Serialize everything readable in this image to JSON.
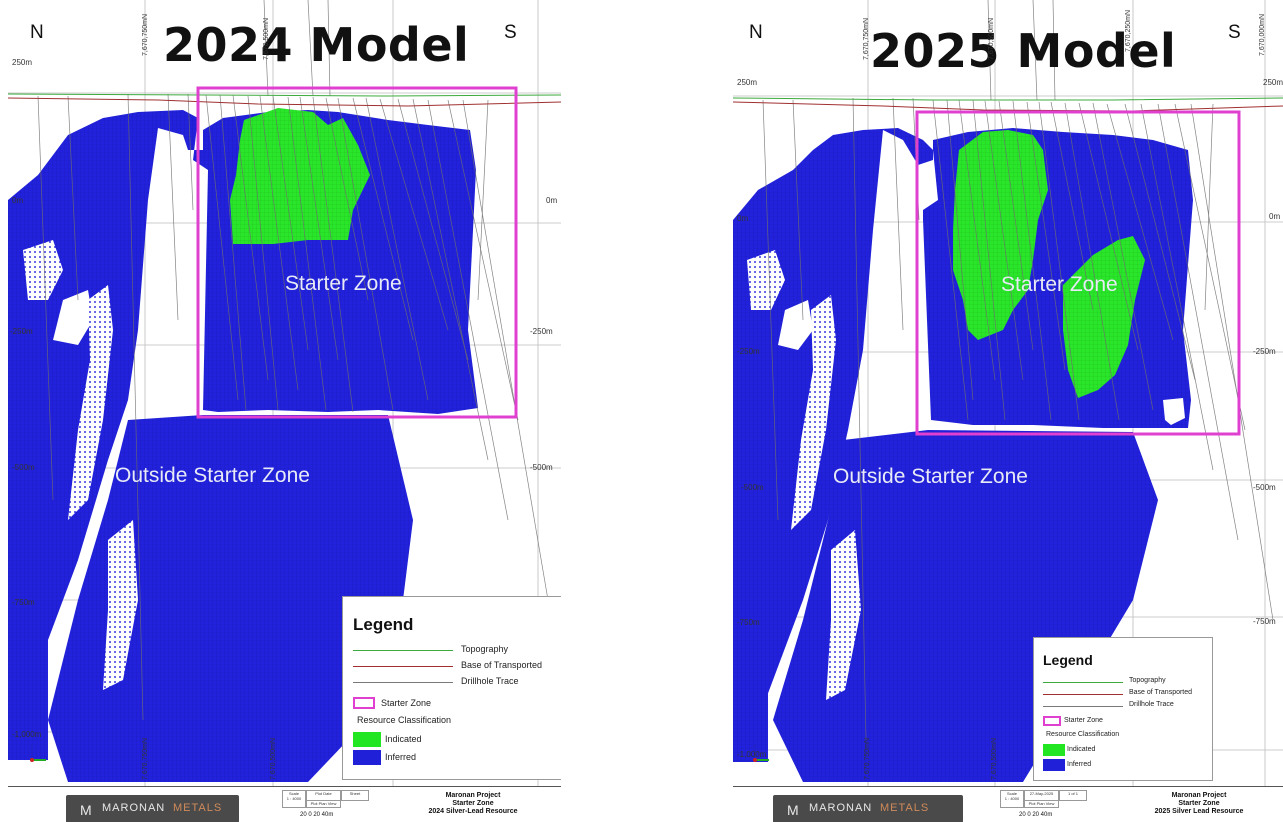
{
  "left": {
    "title": "2024 Model",
    "compass_n": "N",
    "compass_s": "S",
    "starter_zone_label": "Starter Zone",
    "outside_zone_label": "Outside Starter Zone",
    "northings": [
      "7,670,750mN",
      "7,670,500mN"
    ],
    "northings_bottom": [
      "7,670,750mN",
      "7,670,500mN"
    ],
    "rl_left": [
      "250m",
      "0m",
      "-250m",
      "-500m",
      "-750m",
      "-1,000m"
    ],
    "rl_right": [
      "0m",
      "-250m",
      "-500m"
    ],
    "titleblock": {
      "logo_word1": "MARONAN",
      "logo_word2": "METALS",
      "project": "Maronan Project",
      "zone": "Starter Zone",
      "resource": "2024 Silver-Lead Resource",
      "scale_label": "Scale",
      "scale_value": "1 : 4000",
      "plot_date_label": "Plot Date",
      "plot_date": "27-May-2025",
      "sheet_label": "Sheet",
      "sheet": "1 of 1",
      "plot_plan_view": "Plot Plan View",
      "scale_bar": "20  0  20 40m"
    }
  },
  "right": {
    "title": "2025 Model",
    "compass_n": "N",
    "compass_s": "S",
    "starter_zone_label": "Starter Zone",
    "outside_zone_label": "Outside Starter Zone",
    "northings": [
      "7,670,750mN",
      "7,670,500mN",
      "7,670,250mN",
      "7,670,000mN"
    ],
    "northings_bottom": [
      "7,670,750mN",
      "7,670,500mN"
    ],
    "rl_left": [
      "250m",
      "0m",
      "-250m",
      "-500m",
      "-750m",
      "-1,000m"
    ],
    "rl_right": [
      "250m",
      "0m",
      "-250m",
      "-500m",
      "-750m"
    ],
    "titleblock": {
      "logo_word1": "MARONAN",
      "logo_word2": "METALS",
      "project": "Maronan Project",
      "zone": "Starter Zone",
      "resource": "2025 Silver Lead Resource",
      "scale_label": "Scale",
      "scale_value": "1 : 4000",
      "plot_date_label": "Plot Date",
      "plot_date": "27-May-2025",
      "sheet_label": "Sheet",
      "sheet": "1 of 1",
      "plot_plan_view": "Plot Plan View",
      "scale_bar": "20  0  20 40m"
    }
  },
  "legend": {
    "title": "Legend",
    "topography": "Topography",
    "base_of_transported": "Base of Transported",
    "drillhole_trace": "Drillhole Trace",
    "starter_zone": "Starter Zone",
    "resource_classification": "Resource Classification",
    "indicated": "Indicated",
    "inferred": "Inferred"
  },
  "colors": {
    "inferred": "#2020d8",
    "indicated": "#22e622",
    "starter_zone_box": "#e040d0",
    "topography": "#3caa3c",
    "base_of_transported": "#a03030",
    "drillhole_trace": "#7a7a7a",
    "grid": "#b8b8b8"
  }
}
